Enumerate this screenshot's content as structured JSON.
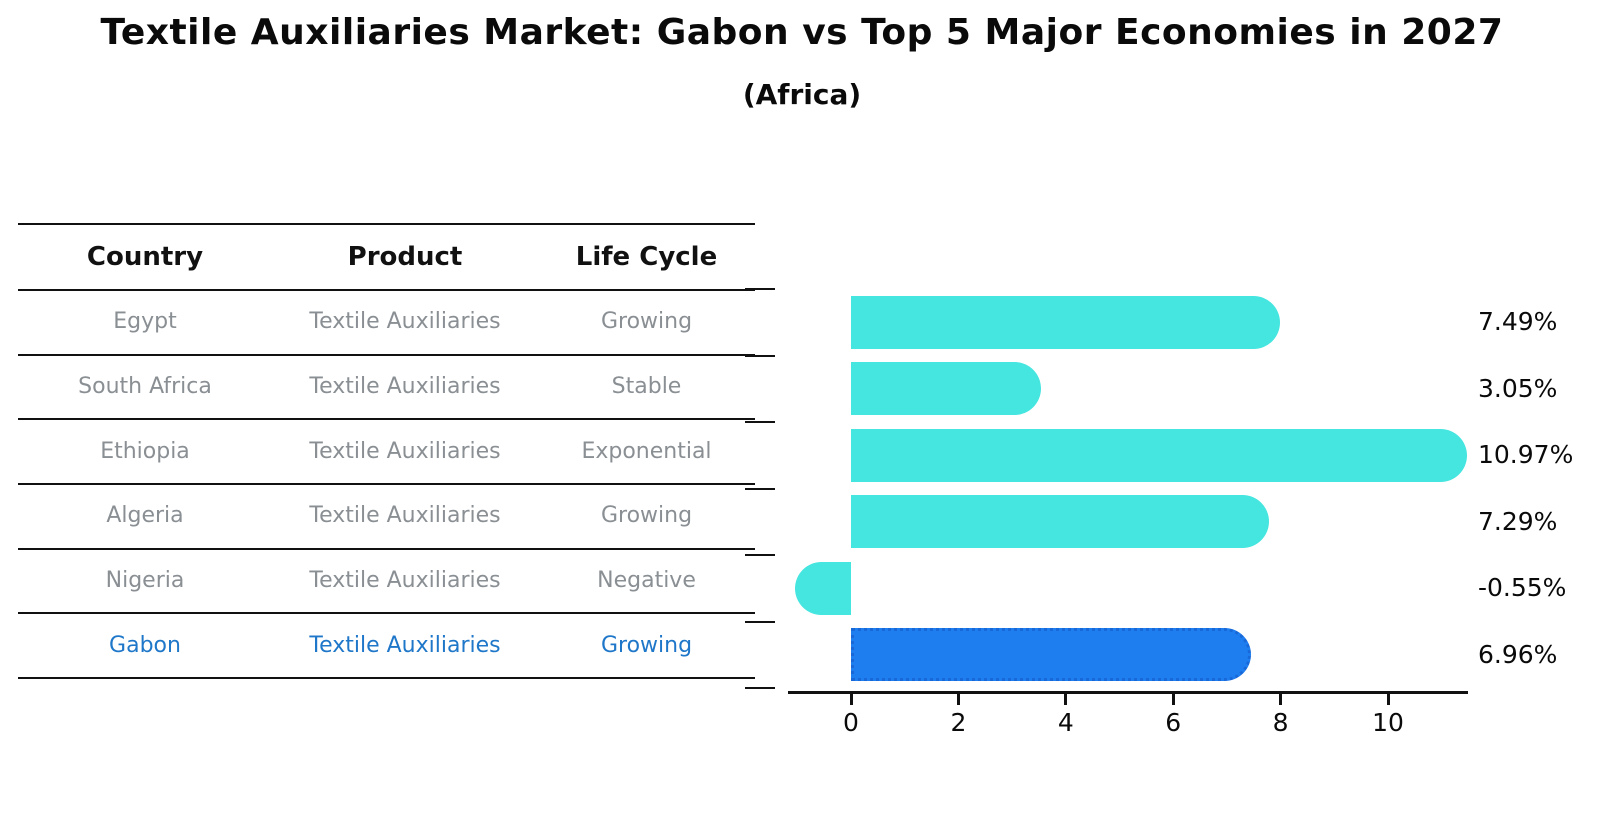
{
  "header": {
    "title": "Textile Auxiliaries Market: Gabon vs Top 5 Major Economies in 2027",
    "subtitle": "(Africa)"
  },
  "table": {
    "columns": [
      "Country",
      "Product",
      "Life Cycle"
    ],
    "rows": [
      {
        "country": "Egypt",
        "product": "Textile Auxiliaries",
        "life_cycle": "Growing",
        "highlight": false
      },
      {
        "country": "South Africa",
        "product": "Textile Auxiliaries",
        "life_cycle": "Stable",
        "highlight": false
      },
      {
        "country": "Ethiopia",
        "product": "Textile Auxiliaries",
        "life_cycle": "Exponential",
        "highlight": false
      },
      {
        "country": "Algeria",
        "product": "Textile Auxiliaries",
        "life_cycle": "Growing",
        "highlight": false
      },
      {
        "country": "Nigeria",
        "product": "Textile Auxiliaries",
        "life_cycle": "Negative",
        "highlight": false
      },
      {
        "country": "Gabon",
        "product": "Textile Auxiliaries",
        "life_cycle": "Growing",
        "highlight": true
      }
    ]
  },
  "chart_data": {
    "type": "bar",
    "orientation": "horizontal",
    "title": "Textile Auxiliaries Market: Gabon vs Top 5 Major Economies in 2027 (Africa)",
    "categories": [
      "Egypt",
      "South Africa",
      "Ethiopia",
      "Algeria",
      "Nigeria",
      "Gabon"
    ],
    "values": [
      7.49,
      3.05,
      10.97,
      7.29,
      -0.55,
      6.96
    ],
    "value_labels": [
      "7.49%",
      "3.05%",
      "10.97%",
      "7.29%",
      "-0.55%",
      "6.96%"
    ],
    "unit": "percent",
    "highlight_index": 5,
    "x_ticks": [
      0,
      2,
      4,
      6,
      8,
      10
    ],
    "xlim": [
      -1.4,
      11.5
    ],
    "grid": false,
    "legend": false,
    "colors": {
      "bar": "#45e5e0",
      "highlight_bar": "#1e7ef0",
      "highlight_border": "#1868d8",
      "label_text": "#0a0a0a",
      "table_text": "#8a8f94",
      "highlight_text": "#1f77c9"
    }
  }
}
